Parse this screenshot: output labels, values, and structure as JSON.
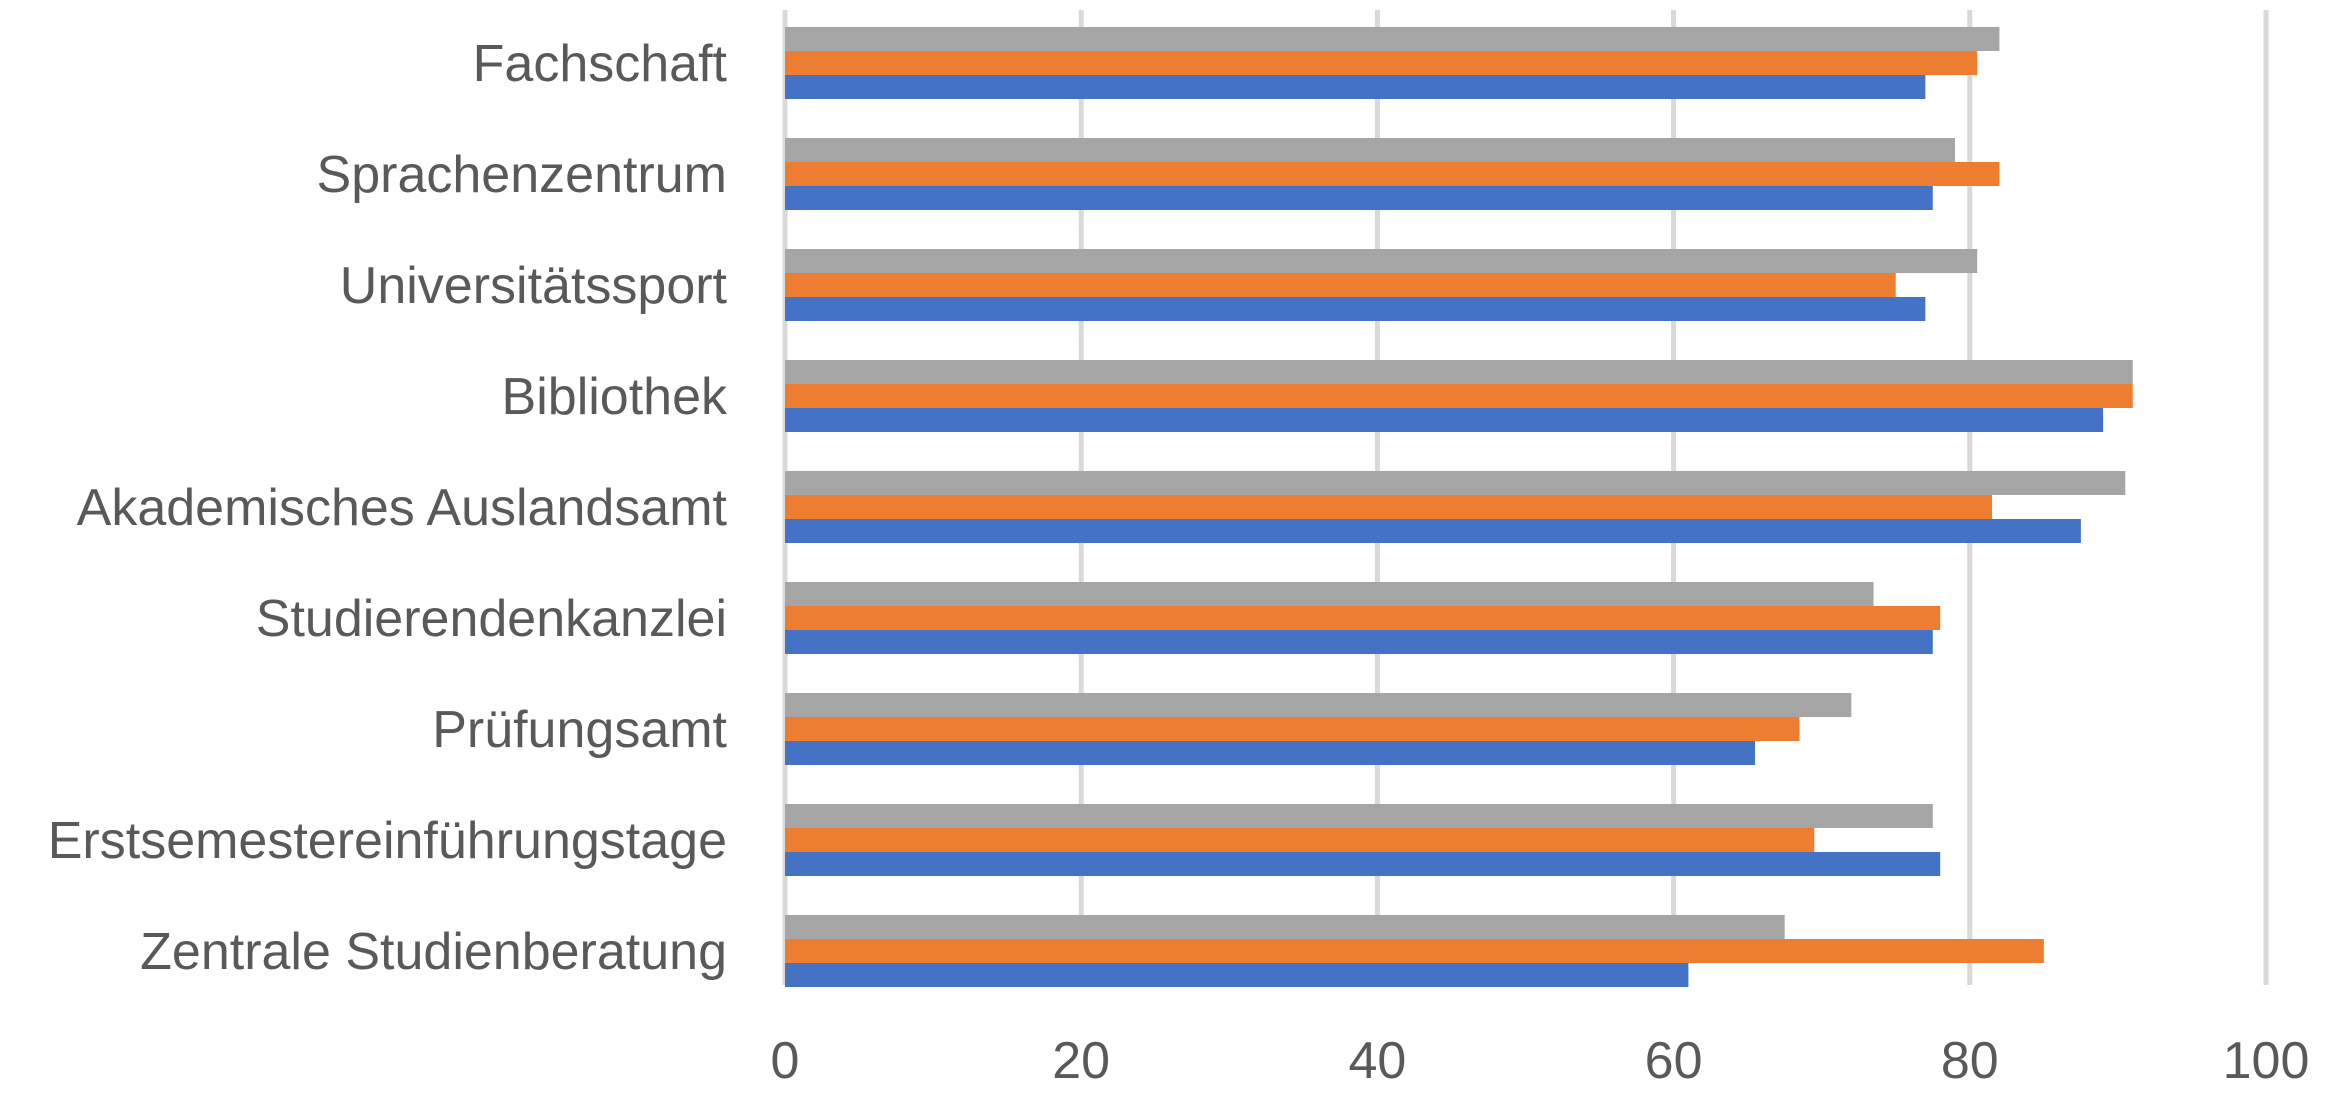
{
  "chart_data": {
    "type": "bar",
    "orientation": "horizontal",
    "title": "",
    "xlabel": "",
    "ylabel": "",
    "categories": [
      "Fachschaft",
      "Sprachenzentrum",
      "Universitätssport",
      "Bibliothek",
      "Akademisches Auslandsamt",
      "Studierendenkanzlei",
      "Prüfungsamt",
      "Erstsemestereinführungstage",
      "Zentrale Studienberatung"
    ],
    "series": [
      {
        "color": "#A5A5A5",
        "values": [
          82,
          79,
          80.5,
          91,
          90.5,
          73.5,
          72,
          77.5,
          67.5
        ]
      },
      {
        "color": "#ED7D31",
        "values": [
          80.5,
          82,
          75,
          91,
          81.5,
          78,
          68.5,
          69.5,
          85
        ]
      },
      {
        "color": "#4472C4",
        "values": [
          77,
          77.5,
          77,
          89,
          87.5,
          77.5,
          65.5,
          78,
          61
        ]
      }
    ],
    "xlim": [
      0,
      100
    ],
    "xticks": [
      0,
      20,
      40,
      60,
      80,
      100
    ],
    "grid": true,
    "legend": "none"
  }
}
